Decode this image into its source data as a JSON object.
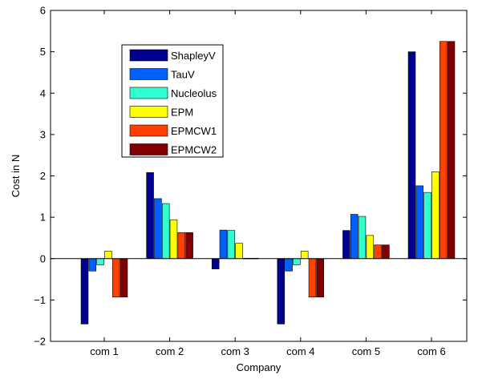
{
  "chart_data": {
    "type": "bar",
    "title": "",
    "xlabel": "Company",
    "ylabel": "Cost in N",
    "ylim": [
      -2,
      6
    ],
    "yticks": [
      "−2",
      "−1",
      "0",
      "1",
      "2",
      "3",
      "4",
      "5",
      "6"
    ],
    "categories": [
      "com 1",
      "com 2",
      "com 3",
      "com 4",
      "com 5",
      "com 6"
    ],
    "legend_position": "upper-left",
    "series": [
      {
        "name": "ShapleyV",
        "color": "#00008f",
        "values": [
          -1.58,
          2.08,
          -0.25,
          -1.58,
          0.68,
          5.0
        ]
      },
      {
        "name": "TauV",
        "color": "#0060ff",
        "values": [
          -0.3,
          1.45,
          0.69,
          -0.3,
          1.07,
          1.76
        ]
      },
      {
        "name": "Nucleolus",
        "color": "#30ffcf",
        "values": [
          -0.15,
          1.33,
          0.68,
          -0.15,
          1.02,
          1.6
        ]
      },
      {
        "name": "EPM",
        "color": "#ffff00",
        "values": [
          0.18,
          0.94,
          0.37,
          0.18,
          0.56,
          2.1
        ]
      },
      {
        "name": "EPMCW1",
        "color": "#ff4000",
        "values": [
          -0.93,
          0.63,
          0.01,
          -0.93,
          0.33,
          5.25
        ]
      },
      {
        "name": "EPMCW2",
        "color": "#800000",
        "values": [
          -0.93,
          0.63,
          0.01,
          -0.93,
          0.33,
          5.25
        ]
      }
    ]
  }
}
